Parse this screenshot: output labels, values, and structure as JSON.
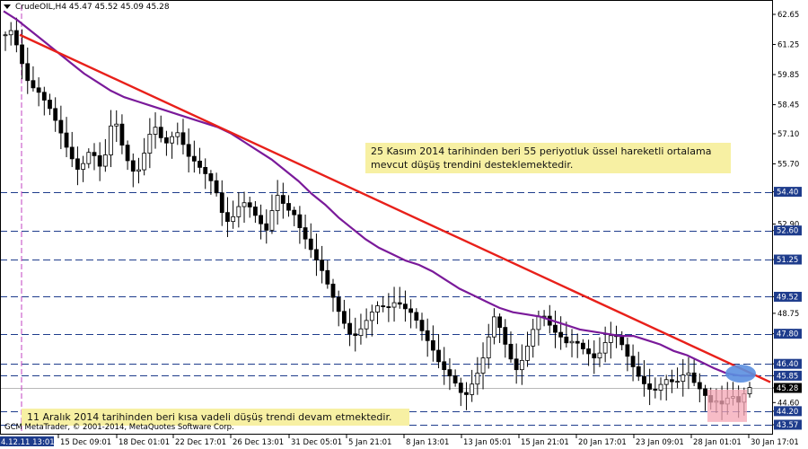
{
  "header": {
    "text": "CrudeOIL,H4  45.47 45.52 45.09 45.28"
  },
  "copyright": "GCM MetaTrader, © 2001-2014, MetaQuotes Software Corp.",
  "annotations": {
    "ema_note": "25 Kasım 2014 tarihinden beri  55 periyotluk üssel hareketli ortalama\nmevcut düşüş trendini desteklemektedir.",
    "short_note": "11 Aralık 2014 tarihinden beri kısa vadeli düşüş trendi devam etmektedir."
  },
  "colors": {
    "up_candle": "#ffffff",
    "down_candle": "#000000",
    "ema": "#7a1a9a",
    "trendline": "#e8201a",
    "level_line": "#1e3c8c",
    "current_price_line": "#b8b8b8",
    "price_box": "#1e3c8c",
    "highlight_ellipse": "#5b8fe0",
    "highlight_box": "#f4a6b4",
    "annotation_bg": "#f7f0a3"
  },
  "chart_data": {
    "type": "candlestick",
    "symbol": "CrudeOIL",
    "timeframe": "H4",
    "ohlc_current": {
      "open": 45.47,
      "high": 45.52,
      "low": 45.09,
      "close": 45.28
    },
    "y_ticks": [
      62.65,
      61.25,
      59.85,
      58.45,
      57.1,
      55.7,
      54.4,
      52.9,
      52.6,
      51.25,
      49.52,
      48.75,
      47.8,
      46.4,
      45.85,
      45.28,
      44.6,
      44.2,
      43.57
    ],
    "highlighted_levels": [
      54.4,
      52.6,
      51.25,
      49.52,
      47.8,
      46.4,
      45.85,
      44.2,
      43.57
    ],
    "current_price": 45.28,
    "x_labels": [
      "4.12.11 13:01",
      "15 Dec 09:01",
      "18 Dec 01:01",
      "22 Dec 17:01",
      "26 Dec 13:01",
      "31 Dec 05:01",
      "5 Jan 21:01",
      "8 Jan 13:01",
      "13 Jan 05:01",
      "15 Jan 21:01",
      "20 Jan 17:01",
      "23 Jan 09:01",
      "28 Jan 01:01",
      "30 Jan 17:01"
    ],
    "close_path": [
      61.7,
      61.9,
      61.2,
      60.3,
      59.5,
      59.2,
      59.0,
      58.6,
      58.2,
      57.6,
      57.0,
      56.3,
      55.8,
      55.3,
      55.9,
      56.4,
      55.9,
      55.4,
      56.6,
      58.1,
      57.1,
      56.1,
      55.6,
      55.1,
      55.8,
      56.7,
      57.6,
      57.1,
      56.6,
      56.8,
      57.3,
      56.8,
      56.1,
      55.9,
      55.6,
      55.3,
      55.0,
      54.5,
      53.5,
      53.0,
      53.2,
      53.7,
      53.9,
      53.7,
      53.3,
      52.9,
      52.6,
      53.6,
      54.3,
      53.8,
      53.5,
      53.3,
      52.6,
      52.1,
      51.6,
      51.1,
      50.6,
      49.9,
      49.3,
      48.6,
      48.1,
      47.6,
      47.8,
      48.2,
      48.6,
      49.0,
      49.2,
      48.9,
      49.2,
      49.3,
      49.0,
      48.9,
      48.6,
      48.1,
      47.6,
      47.2,
      46.6,
      46.2,
      45.9,
      45.6,
      45.1,
      44.9,
      45.4,
      45.9,
      46.6,
      47.6,
      48.6,
      48.1,
      47.3,
      46.6,
      46.1,
      46.6,
      47.3,
      48.1,
      48.7,
      48.6,
      48.1,
      47.8,
      47.6,
      47.3,
      47.5,
      47.3,
      47.0,
      46.8,
      46.6,
      47.1,
      47.6,
      47.8,
      47.6,
      47.0,
      46.5,
      46.0,
      45.6,
      45.3,
      45.1,
      45.3,
      45.7,
      45.6,
      45.5,
      45.8,
      46.1,
      45.6,
      45.3,
      45.0,
      44.6,
      44.7,
      44.5,
      44.8,
      44.9,
      44.6,
      45.0,
      45.3
    ],
    "ema_period": 55,
    "ema_path": [
      62.8,
      62.4,
      61.9,
      61.4,
      60.9,
      60.4,
      59.9,
      59.5,
      59.1,
      58.8,
      58.6,
      58.4,
      58.2,
      58.0,
      57.8,
      57.6,
      57.4,
      57.1,
      56.7,
      56.3,
      55.9,
      55.4,
      54.9,
      54.3,
      53.8,
      53.2,
      52.7,
      52.2,
      51.8,
      51.5,
      51.2,
      51.0,
      50.7,
      50.3,
      49.9,
      49.6,
      49.3,
      49.0,
      48.8,
      48.7,
      48.6,
      48.4,
      48.2,
      48.0,
      47.9,
      47.8,
      47.7,
      47.7,
      47.5,
      47.3,
      47.0,
      46.8,
      46.5,
      46.2,
      45.95,
      45.85,
      45.85
    ],
    "trendline": {
      "start_value": 61.7,
      "end_value": 45.55
    },
    "annotations_text_count": 2
  }
}
